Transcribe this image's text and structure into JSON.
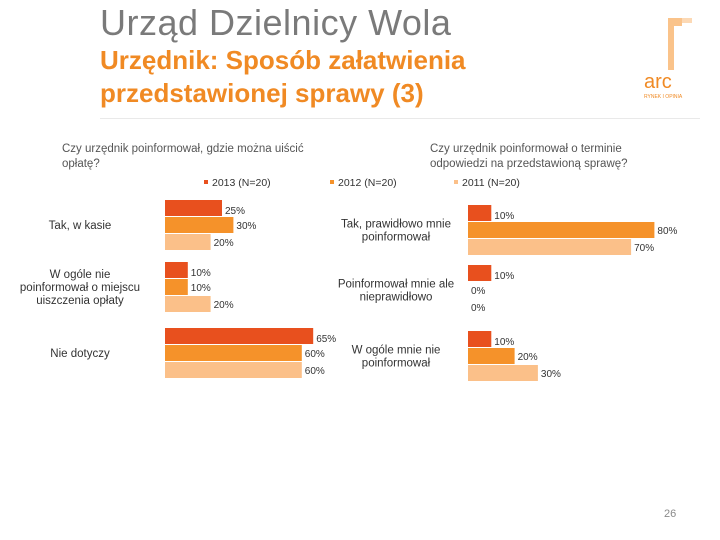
{
  "header": {
    "title": "Urząd Dzielnicy Wola",
    "subtitle_line1": "Urzędnik: Sposób załatwienia",
    "subtitle_line2": "przedstawionej sprawy (3)"
  },
  "logo": {
    "text": "arc",
    "tagline": "RYNEK I OPINIA"
  },
  "questions": {
    "left": "Czy urzędnik poinformował, gdzie można uiścić opłatę?",
    "left_line1": "Czy urzędnik poinformował, gdzie można uiścić",
    "left_line2": "opłatę?",
    "right": "Czy urzędnik poinformował o terminie odpowiedzi na przedstawioną sprawę?",
    "right_line1": "Czy urzędnik poinformował o terminie",
    "right_line2": "odpowiedzi na przedstawioną sprawę?"
  },
  "colors": {
    "2013": "#e8501e",
    "2012": "#f5922a",
    "2011": "#fbc089",
    "title": "#7a7a7a",
    "subtitle": "#f08a24"
  },
  "chart_data": [
    {
      "type": "bar",
      "orientation": "horizontal",
      "title": "Czy urzędnik poinformował, gdzie można uiścić opłatę?",
      "categories": [
        "Tak, w kasie",
        "W ogóle nie poinformował o miejscu uiszczenia opłaty",
        "Nie dotyczy"
      ],
      "category_lines": [
        [
          "Tak, w kasie"
        ],
        [
          "W ogóle nie",
          "poinformował o miejscu",
          "uiszczenia opłaty"
        ],
        [
          "Nie dotyczy"
        ]
      ],
      "series": [
        {
          "name": "2013 (N=20)",
          "values": [
            25,
            10,
            65
          ]
        },
        {
          "name": "2012 (N=20)",
          "values": [
            30,
            10,
            60
          ]
        },
        {
          "name": "2011 (N=20)",
          "values": [
            20,
            20,
            60
          ]
        }
      ],
      "unit": "%",
      "xlim": [
        0,
        100
      ]
    },
    {
      "type": "bar",
      "orientation": "horizontal",
      "title": "Czy urzędnik poinformował o terminie odpowiedzi na przedstawioną sprawę?",
      "categories": [
        "Tak, prawidłowo mnie poinformował",
        "Poinformował mnie ale nieprawidłowo",
        "W ogóle mnie nie poinformował"
      ],
      "category_lines": [
        [
          "Tak, prawidłowo mnie",
          "poinformował"
        ],
        [
          "Poinformował mnie ale",
          "nieprawidłowo"
        ],
        [
          "W ogóle mnie nie",
          "poinformował"
        ]
      ],
      "series": [
        {
          "name": "2013 (N=20)",
          "values": [
            10,
            10,
            10
          ]
        },
        {
          "name": "2012 (N=20)",
          "values": [
            80,
            0,
            20
          ]
        },
        {
          "name": "2011 (N=20)",
          "values": [
            70,
            0,
            30
          ]
        }
      ],
      "unit": "%",
      "xlim": [
        0,
        100
      ]
    }
  ],
  "legend": [
    {
      "label": "2013 (N=20)"
    },
    {
      "label": "2012 (N=20)"
    },
    {
      "label": "2011 (N=20)"
    }
  ],
  "footer": {
    "page_number": "26"
  }
}
